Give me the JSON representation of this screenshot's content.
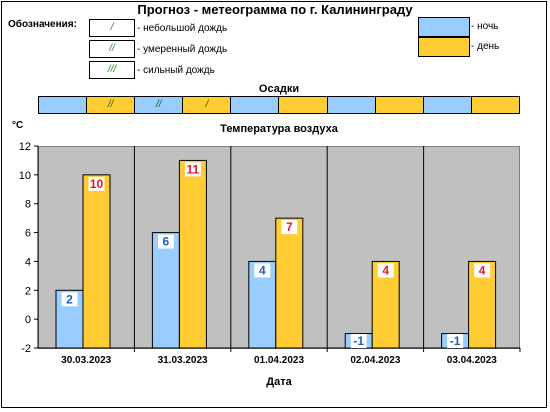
{
  "title": "Прогноз - метеограмма по г. Калининграду",
  "legend": {
    "caption": "Обозначения:",
    "rain": [
      {
        "glyph": "/",
        "label": "- небольшой дождь"
      },
      {
        "glyph": "//",
        "label": "- умеренный дождь"
      },
      {
        "glyph": "///",
        "label": "- сильный дождь"
      }
    ],
    "periods": [
      {
        "label": "- ночь",
        "color": "#99ccff"
      },
      {
        "label": "- день",
        "color": "#ffcc33"
      }
    ]
  },
  "precipitation": {
    "title": "Осадки",
    "cells": [
      "",
      "//",
      "//",
      "/",
      "",
      "",
      "",
      "",
      "",
      ""
    ]
  },
  "colors": {
    "night": "#99ccff",
    "day": "#ffcc33",
    "night_label": "#1f5fbf",
    "day_label": "#e8182b"
  },
  "chart_data": {
    "type": "bar",
    "title": "Температура воздуха",
    "ylabel": "°C",
    "xlabel": "Дата",
    "ylim": [
      -2,
      12
    ],
    "yticks": [
      -2,
      0,
      2,
      4,
      6,
      8,
      10,
      12
    ],
    "categories": [
      "30.03.2023",
      "31.03.2023",
      "01.04.2023",
      "02.04.2023",
      "03.04.2023"
    ],
    "series": [
      {
        "name": "ночь",
        "values": [
          2,
          6,
          4,
          -1,
          -1
        ]
      },
      {
        "name": "день",
        "values": [
          10,
          11,
          7,
          4,
          4
        ]
      }
    ],
    "grid": "vertical separators",
    "legend": "top-right"
  }
}
